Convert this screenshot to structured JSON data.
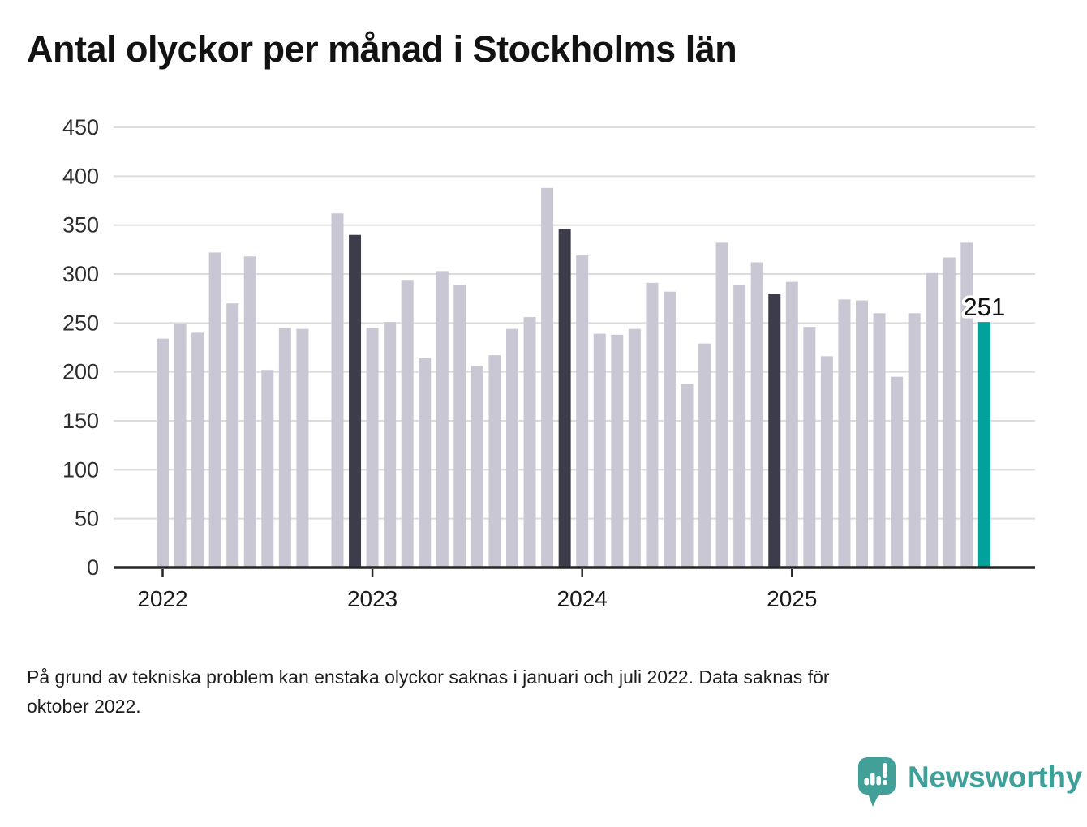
{
  "footnote": {
    "line1": "På grund av tekniska problem kan enstaka olyckor saknas i januari och juli 2022. Data saknas för",
    "line2": "oktober 2022.",
    "full_text": "På grund av tekniska problem kan enstaka olyckor saknas i januari och juli 2022. Data saknas för oktober 2022."
  },
  "logo": {
    "text": "Newsworthy",
    "icon": "newsworthy-speech-bubble-bar-chart-icon"
  },
  "colors": {
    "bar_light": "#c9c7d3",
    "bar_dark": "#3c3c4a",
    "bar_accent": "#00a29b",
    "grid": "#dcdcdc",
    "axis": "#262626",
    "y_label": "#2e2e2e",
    "x_label": "#1a1a1a",
    "annotation_text": "#111111",
    "logo_teal": "#3fa099"
  },
  "chart_data": {
    "type": "bar",
    "title": "Antal olyckor per månad i Stockholms län",
    "xlabel": "",
    "ylabel": "",
    "ylim": [
      0,
      450
    ],
    "yticks": [
      0,
      50,
      100,
      150,
      200,
      250,
      300,
      350,
      400,
      450
    ],
    "x_axis_years": [
      "2022",
      "2023",
      "2024",
      "2025"
    ],
    "grid": "horizontal",
    "legend": "none",
    "annotation": {
      "month": "2025-12",
      "text": "251"
    },
    "missing_months": [
      "2022-10"
    ],
    "months": [
      {
        "month": "2022-01",
        "value": 234,
        "emphasis": "normal"
      },
      {
        "month": "2022-02",
        "value": 249,
        "emphasis": "normal"
      },
      {
        "month": "2022-03",
        "value": 240,
        "emphasis": "normal"
      },
      {
        "month": "2022-04",
        "value": 322,
        "emphasis": "normal"
      },
      {
        "month": "2022-05",
        "value": 270,
        "emphasis": "normal"
      },
      {
        "month": "2022-06",
        "value": 318,
        "emphasis": "normal"
      },
      {
        "month": "2022-07",
        "value": 202,
        "emphasis": "normal"
      },
      {
        "month": "2022-08",
        "value": 245,
        "emphasis": "normal"
      },
      {
        "month": "2022-09",
        "value": 244,
        "emphasis": "normal"
      },
      {
        "month": "2022-10",
        "value": null,
        "emphasis": "missing"
      },
      {
        "month": "2022-11",
        "value": 362,
        "emphasis": "normal"
      },
      {
        "month": "2022-12",
        "value": 340,
        "emphasis": "dark"
      },
      {
        "month": "2023-01",
        "value": 245,
        "emphasis": "normal"
      },
      {
        "month": "2023-02",
        "value": 251,
        "emphasis": "normal"
      },
      {
        "month": "2023-03",
        "value": 294,
        "emphasis": "normal"
      },
      {
        "month": "2023-04",
        "value": 214,
        "emphasis": "normal"
      },
      {
        "month": "2023-05",
        "value": 303,
        "emphasis": "normal"
      },
      {
        "month": "2023-06",
        "value": 289,
        "emphasis": "normal"
      },
      {
        "month": "2023-07",
        "value": 206,
        "emphasis": "normal"
      },
      {
        "month": "2023-08",
        "value": 217,
        "emphasis": "normal"
      },
      {
        "month": "2023-09",
        "value": 244,
        "emphasis": "normal"
      },
      {
        "month": "2023-10",
        "value": 256,
        "emphasis": "normal"
      },
      {
        "month": "2023-11",
        "value": 388,
        "emphasis": "normal"
      },
      {
        "month": "2023-12",
        "value": 346,
        "emphasis": "dark"
      },
      {
        "month": "2024-01",
        "value": 319,
        "emphasis": "normal"
      },
      {
        "month": "2024-02",
        "value": 239,
        "emphasis": "normal"
      },
      {
        "month": "2024-03",
        "value": 238,
        "emphasis": "normal"
      },
      {
        "month": "2024-04",
        "value": 244,
        "emphasis": "normal"
      },
      {
        "month": "2024-05",
        "value": 291,
        "emphasis": "normal"
      },
      {
        "month": "2024-06",
        "value": 282,
        "emphasis": "normal"
      },
      {
        "month": "2024-07",
        "value": 188,
        "emphasis": "normal"
      },
      {
        "month": "2024-08",
        "value": 229,
        "emphasis": "normal"
      },
      {
        "month": "2024-09",
        "value": 332,
        "emphasis": "normal"
      },
      {
        "month": "2024-10",
        "value": 289,
        "emphasis": "normal"
      },
      {
        "month": "2024-11",
        "value": 312,
        "emphasis": "normal"
      },
      {
        "month": "2024-12",
        "value": 280,
        "emphasis": "dark"
      },
      {
        "month": "2025-01",
        "value": 292,
        "emphasis": "normal"
      },
      {
        "month": "2025-02",
        "value": 246,
        "emphasis": "normal"
      },
      {
        "month": "2025-03",
        "value": 216,
        "emphasis": "normal"
      },
      {
        "month": "2025-04",
        "value": 274,
        "emphasis": "normal"
      },
      {
        "month": "2025-05",
        "value": 273,
        "emphasis": "normal"
      },
      {
        "month": "2025-06",
        "value": 260,
        "emphasis": "normal"
      },
      {
        "month": "2025-07",
        "value": 195,
        "emphasis": "normal"
      },
      {
        "month": "2025-08",
        "value": 260,
        "emphasis": "normal"
      },
      {
        "month": "2025-09",
        "value": 301,
        "emphasis": "normal"
      },
      {
        "month": "2025-10",
        "value": 317,
        "emphasis": "normal"
      },
      {
        "month": "2025-11",
        "value": 332,
        "emphasis": "normal"
      },
      {
        "month": "2025-12",
        "value": 251,
        "emphasis": "accent"
      }
    ]
  }
}
